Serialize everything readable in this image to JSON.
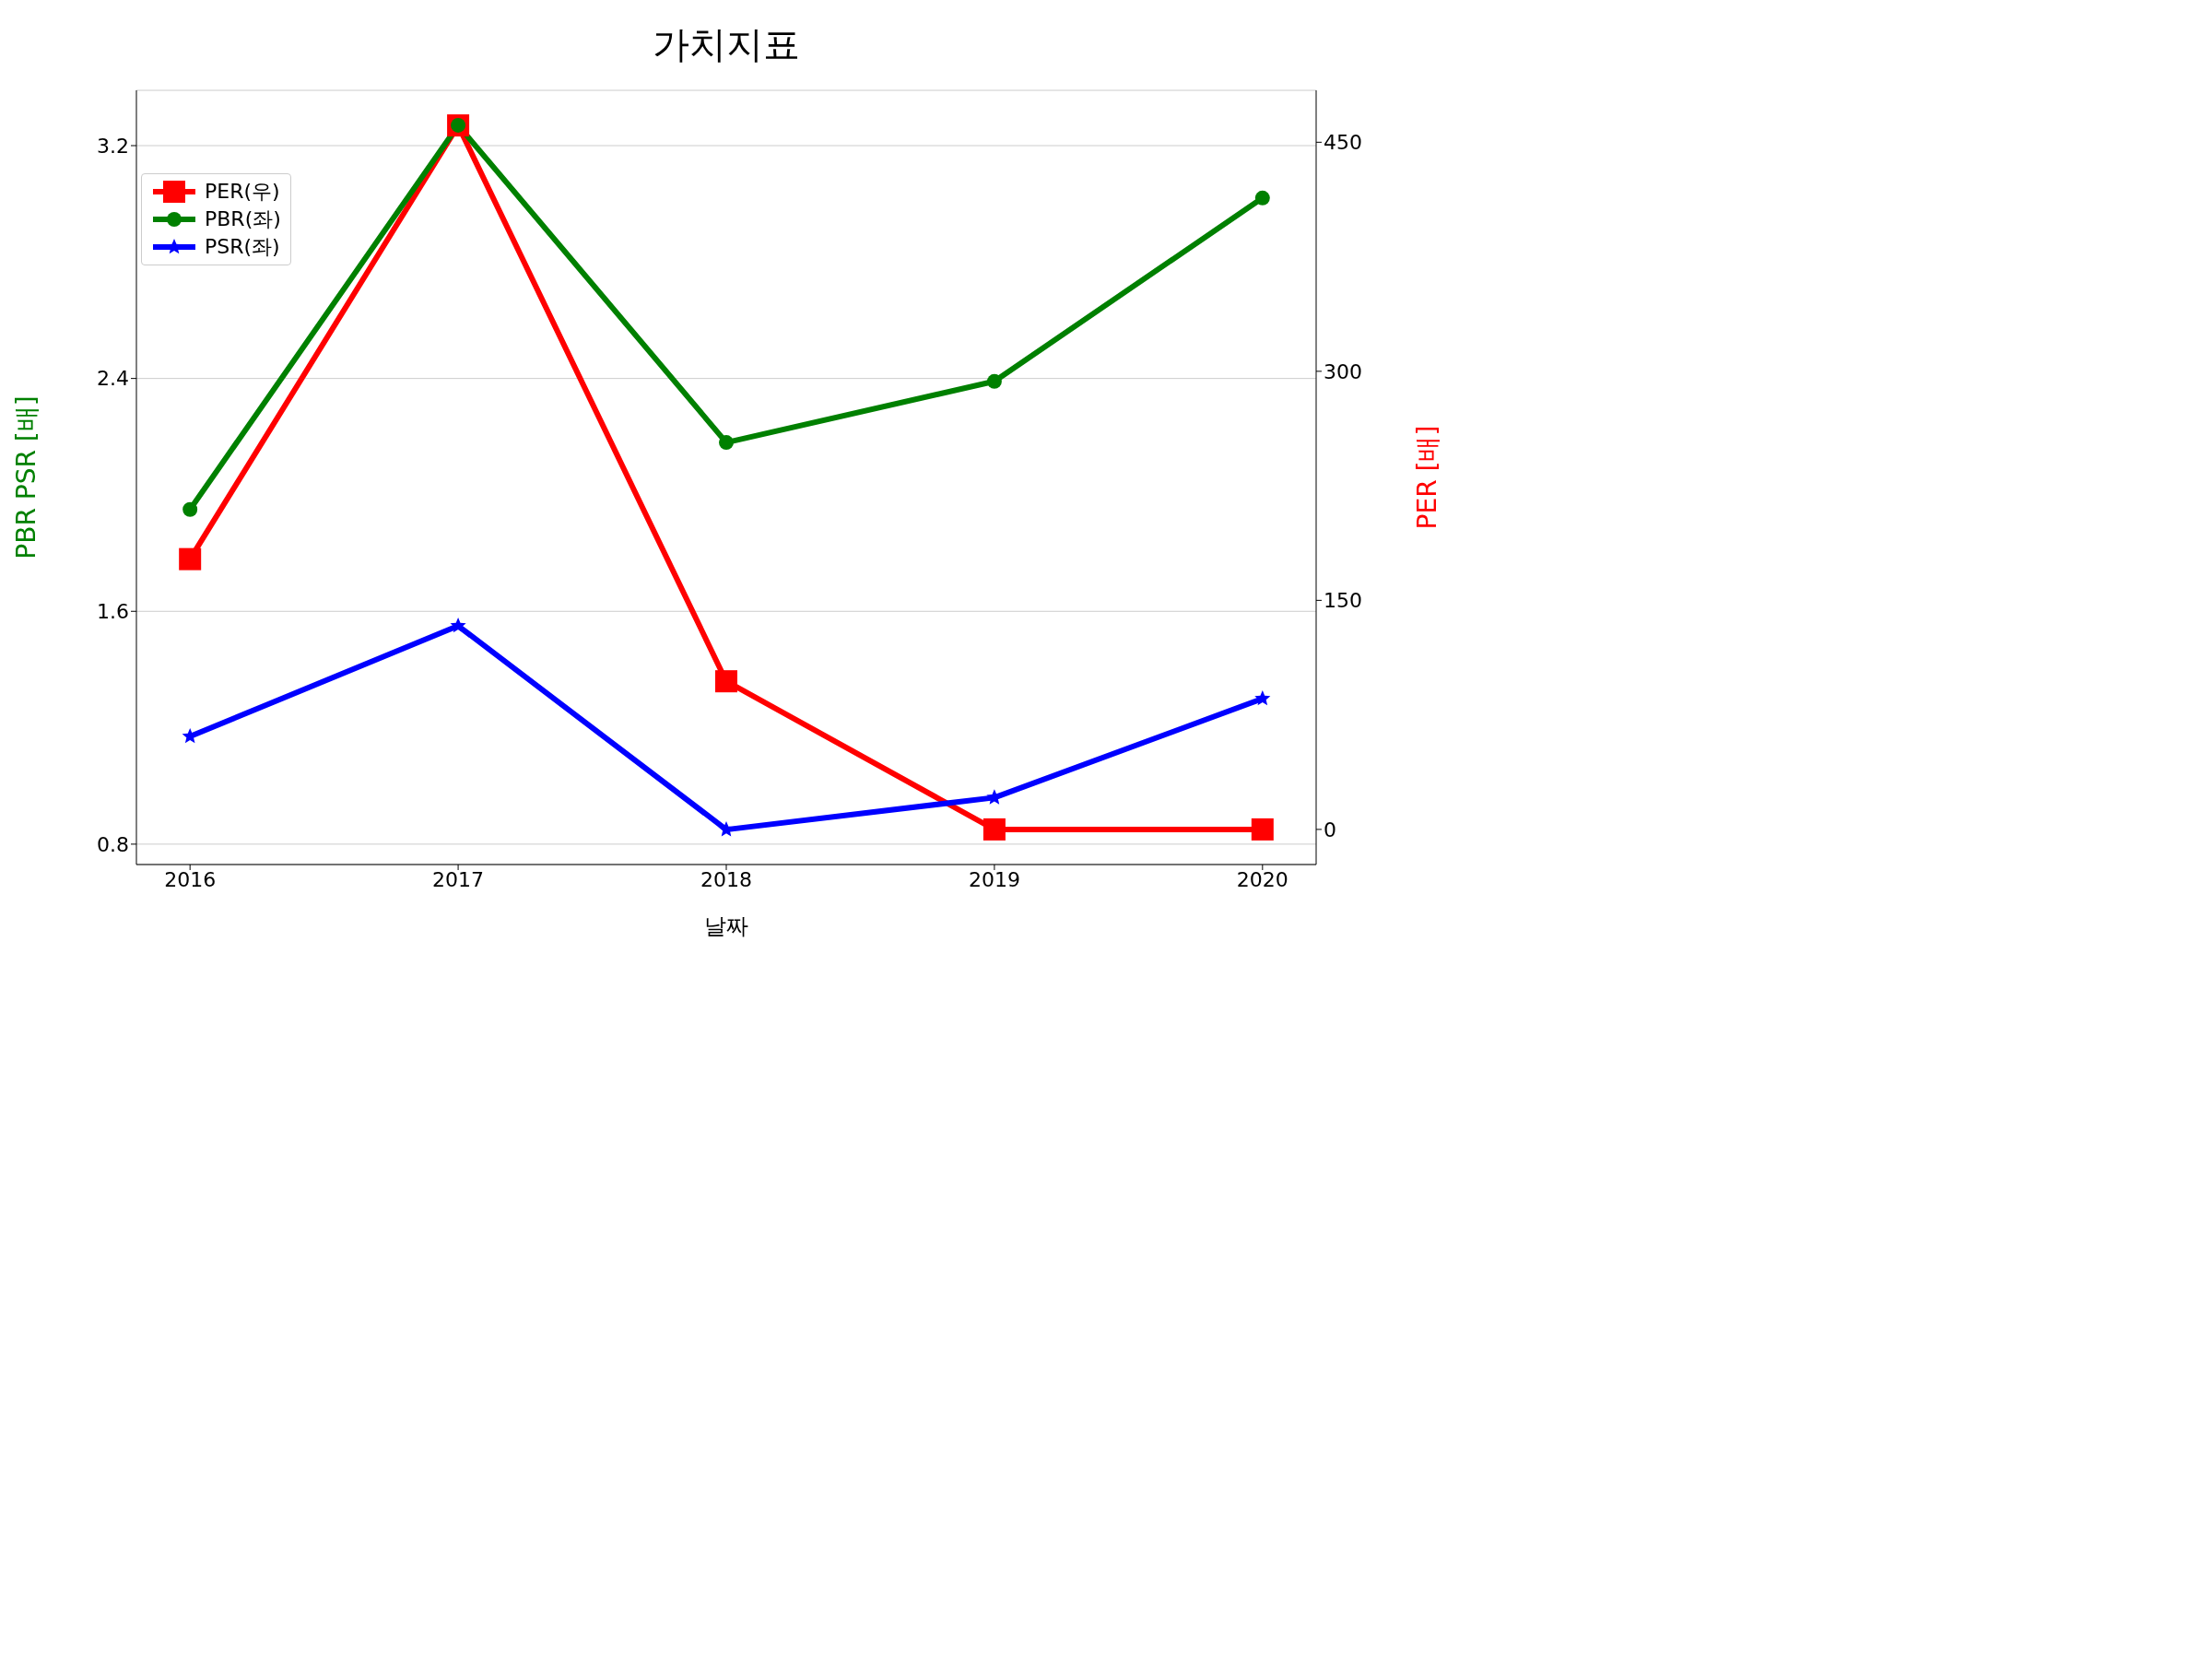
{
  "chart_data": {
    "type": "line",
    "title": "가치지표",
    "xlabel": "날짜",
    "ylabel": "PBR PSR [배]",
    "y2label": "PER [배]",
    "x": [
      2016,
      2017,
      2018,
      2019,
      2020
    ],
    "xlim": [
      2015.8,
      2020.2
    ],
    "xticks": [
      2016,
      2017,
      2018,
      2019,
      2020
    ],
    "ylim": [
      0.73,
      3.39
    ],
    "yticks": [
      0.8,
      1.6,
      2.4,
      3.2
    ],
    "y2lim": [
      -23,
      484
    ],
    "y2ticks": [
      0,
      150,
      300,
      450
    ],
    "grid": "y",
    "legend": "top left",
    "series": [
      {
        "name": "PER(우)",
        "color": "#ff0000",
        "axis": "y2",
        "marker": "square",
        "values": [
          177,
          461,
          97,
          0,
          0
        ]
      },
      {
        "name": "PBR(좌)",
        "color": "#008000",
        "marker": "circle",
        "values": [
          1.95,
          3.27,
          2.18,
          2.39,
          3.02
        ]
      },
      {
        "name": "PSR(좌)",
        "color": "#0000ff",
        "marker": "star",
        "values": [
          1.17,
          1.55,
          0.85,
          0.96,
          1.3
        ]
      }
    ]
  }
}
